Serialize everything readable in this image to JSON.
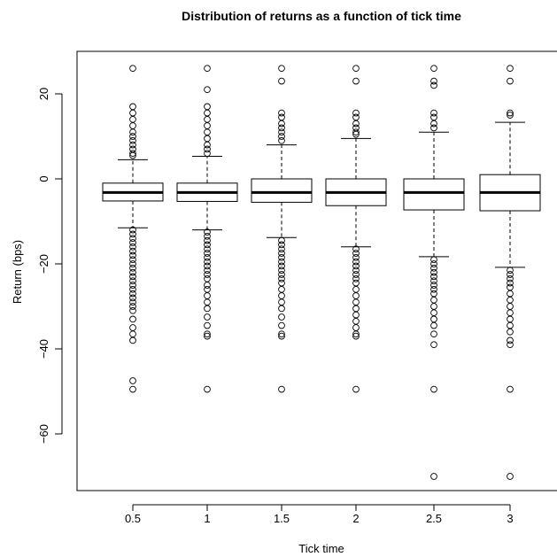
{
  "chart_data": {
    "type": "boxplot",
    "title": "Distribution of returns as a function of tick time",
    "xlabel": "Tick time",
    "ylabel": "Return (bps)",
    "categories": [
      "0.5",
      "1",
      "1.5",
      "2",
      "2.5",
      "3"
    ],
    "y_ticks": [
      "20",
      "0",
      "−20",
      "−40",
      "−60"
    ],
    "y_tick_values": [
      20,
      0,
      -20,
      -40,
      -60
    ],
    "ylim": [
      -71,
      30
    ],
    "boxes": [
      {
        "category": "0.5",
        "whisker_low": -11.5,
        "q1": -5.2,
        "median": -3.2,
        "q3": -1.0,
        "whisker_high": 4.5,
        "outliers_high": [
          26,
          17,
          15.5,
          14,
          12.5,
          11,
          10,
          9,
          8,
          7,
          6,
          5.5
        ],
        "outliers_low": [
          -12,
          -13,
          -14,
          -15,
          -16,
          -17,
          -18,
          -19,
          -20,
          -21,
          -22,
          -23,
          -24,
          -25,
          -26,
          -27,
          -28,
          -29,
          -30,
          -31,
          -33,
          -35,
          -36.5,
          -38,
          -47.5,
          -49.5
        ]
      },
      {
        "category": "1",
        "whisker_low": -12.0,
        "q1": -5.3,
        "median": -3.2,
        "q3": -1.0,
        "whisker_high": 5.3,
        "outliers_high": [
          26,
          21,
          17,
          15.5,
          14,
          12.5,
          11,
          9.5,
          8,
          7,
          6
        ],
        "outliers_low": [
          -12.5,
          -13.5,
          -14.5,
          -15.5,
          -16.5,
          -17.5,
          -18.5,
          -19.5,
          -20.5,
          -21.5,
          -22.5,
          -23.5,
          -25,
          -26,
          -27.5,
          -29,
          -30.5,
          -32.5,
          -34.5,
          -36.5,
          -37,
          -49.5
        ]
      },
      {
        "category": "1.5",
        "whisker_low": -13.8,
        "q1": -5.5,
        "median": -3.2,
        "q3": 0.0,
        "whisker_high": 8.0,
        "outliers_high": [
          26,
          23,
          15.5,
          14.5,
          13,
          12,
          11,
          10,
          9
        ],
        "outliers_low": [
          -14.5,
          -15.5,
          -16.5,
          -17.5,
          -18.5,
          -19.5,
          -20.5,
          -21.5,
          -22.5,
          -23.5,
          -24.5,
          -26,
          -27.5,
          -29,
          -30.5,
          -32.5,
          -34.5,
          -36.5,
          -37,
          -49.5
        ]
      },
      {
        "category": "2",
        "whisker_low": -16.0,
        "q1": -6.3,
        "median": -3.2,
        "q3": 0.0,
        "whisker_high": 9.5,
        "outliers_high": [
          26,
          23,
          15.5,
          14.5,
          13,
          12,
          11,
          10.5
        ],
        "outliers_low": [
          -16.5,
          -17.5,
          -18.5,
          -19.5,
          -20.5,
          -21.5,
          -22.5,
          -23.5,
          -24.5,
          -26,
          -27.5,
          -29,
          -30.5,
          -32,
          -33.5,
          -35,
          -36.5,
          -37,
          -49.5
        ]
      },
      {
        "category": "2.5",
        "whisker_low": -18.3,
        "q1": -7.3,
        "median": -3.2,
        "q3": 0.0,
        "whisker_high": 11.0,
        "outliers_high": [
          26,
          23,
          22,
          15.5,
          14.5,
          13,
          12
        ],
        "outliers_low": [
          -19,
          -20,
          -21,
          -22,
          -23,
          -24,
          -25,
          -26,
          -27,
          -28.5,
          -30,
          -31.5,
          -33,
          -34.5,
          -36.5,
          -39,
          -49.5,
          -70
        ]
      },
      {
        "category": "3",
        "whisker_low": -20.8,
        "q1": -7.5,
        "median": -3.2,
        "q3": 1.0,
        "whisker_high": 13.3,
        "outliers_high": [
          26,
          23,
          15.5,
          15
        ],
        "outliers_low": [
          -21.5,
          -22.5,
          -23.5,
          -24.5,
          -25.5,
          -27,
          -28.5,
          -30,
          -31.5,
          -33,
          -34.5,
          -36,
          -38,
          -39,
          -49.5,
          -70
        ]
      }
    ]
  }
}
